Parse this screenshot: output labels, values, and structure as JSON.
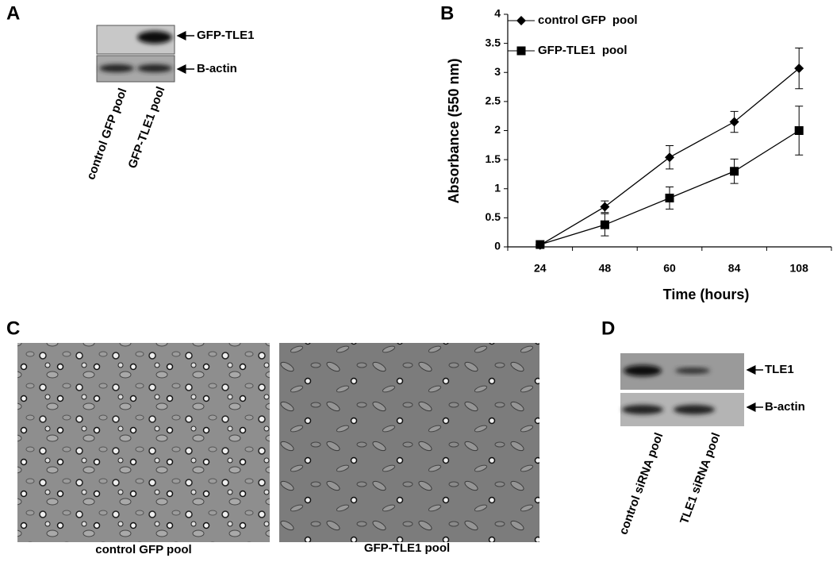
{
  "panel_a": {
    "label": "A",
    "bands": [
      "GFP-TLE1",
      "B-actin"
    ],
    "lanes": [
      "control GFP pool",
      "GFP-TLE1 pool"
    ]
  },
  "chart_data": {
    "type": "line",
    "panel_label": "B",
    "x_label": "Time (hours)",
    "y_label": "Absorbance (550 nm)",
    "categories": [
      "24",
      "48",
      "60",
      "84",
      "108"
    ],
    "series": [
      {
        "name": "control GFP  pool",
        "color": "#000000",
        "marker": "diamond",
        "values": [
          0.03,
          0.69,
          1.54,
          2.15,
          3.07
        ],
        "errors": [
          0.05,
          0.1,
          0.2,
          0.18,
          0.35
        ]
      },
      {
        "name": "GFP-TLE1  pool",
        "color": "#000000",
        "marker": "square",
        "values": [
          0.04,
          0.38,
          0.84,
          1.3,
          2.0
        ],
        "errors": [
          0.05,
          0.19,
          0.19,
          0.21,
          0.42
        ]
      }
    ],
    "ylim": [
      0,
      4
    ],
    "yticks": [
      0,
      0.5,
      1,
      1.5,
      2,
      2.5,
      3,
      3.5,
      4
    ],
    "grid": false,
    "legend": "top-left"
  },
  "panel_c": {
    "label": "C",
    "captions": [
      "control GFP pool",
      "GFP-TLE1 pool"
    ]
  },
  "panel_d": {
    "label": "D",
    "bands": [
      "TLE1",
      "B-actin"
    ],
    "lanes": [
      "control siRNA pool",
      "TLE1 siRNA pool"
    ]
  }
}
